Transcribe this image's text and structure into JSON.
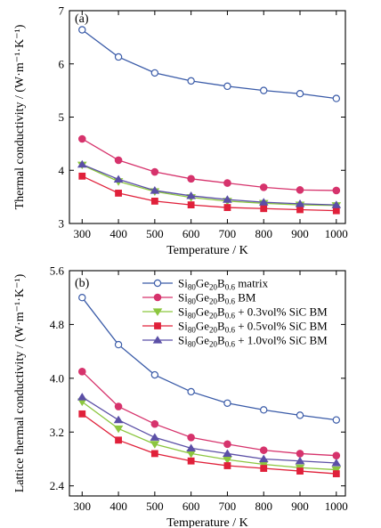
{
  "chart_data": [
    {
      "type": "line",
      "panel_label": "(a)",
      "xlabel": "Temperature / K",
      "ylabel": "Thermal conductivity / (W·m⁻¹·K⁻¹)",
      "xlim": [
        265,
        1025
      ],
      "ylim": [
        3,
        7
      ],
      "xticks": [
        300,
        400,
        500,
        600,
        700,
        800,
        900,
        1000
      ],
      "yticks": [
        3,
        4,
        5,
        6,
        7
      ],
      "ytick_decimals": 0,
      "x": [
        300,
        400,
        500,
        600,
        700,
        800,
        900,
        1000
      ],
      "series": [
        {
          "name": "Si80Ge20B0.6 matrix",
          "values": [
            6.64,
            6.13,
            5.83,
            5.68,
            5.58,
            5.5,
            5.44,
            5.35
          ]
        },
        {
          "name": "Si80Ge20B0.6 BM",
          "values": [
            4.59,
            4.19,
            3.97,
            3.84,
            3.76,
            3.68,
            3.63,
            3.62
          ]
        },
        {
          "name": "Si80Ge20B0.6 + 0.3vol% SiC BM",
          "values": [
            4.1,
            3.79,
            3.6,
            3.49,
            3.42,
            3.38,
            3.35,
            3.34
          ]
        },
        {
          "name": "Si80Ge20B0.6 + 0.5vol% SiC BM",
          "values": [
            3.89,
            3.57,
            3.42,
            3.35,
            3.3,
            3.28,
            3.26,
            3.24
          ]
        },
        {
          "name": "Si80Ge20B0.6 + 1.0vol% SiC BM",
          "values": [
            4.11,
            3.83,
            3.62,
            3.52,
            3.45,
            3.4,
            3.37,
            3.35
          ]
        }
      ]
    },
    {
      "type": "line",
      "panel_label": "(b)",
      "xlabel": "Temperature / K",
      "ylabel": "Lattice thermal conductivity / (W·m⁻¹·K⁻¹)",
      "xlim": [
        265,
        1025
      ],
      "ylim": [
        2.25,
        5.6
      ],
      "xticks": [
        300,
        400,
        500,
        600,
        700,
        800,
        900,
        1000
      ],
      "yticks": [
        2.4,
        3.2,
        4.0,
        4.8,
        5.6
      ],
      "ytick_decimals": 1,
      "legend": "top-right",
      "x": [
        300,
        400,
        500,
        600,
        700,
        800,
        900,
        1000
      ],
      "series": [
        {
          "name": "Si80Ge20B0.6 matrix",
          "values": [
            5.2,
            4.5,
            4.05,
            3.8,
            3.63,
            3.53,
            3.45,
            3.38
          ]
        },
        {
          "name": "Si80Ge20B0.6 BM",
          "values": [
            4.1,
            3.58,
            3.32,
            3.12,
            3.02,
            2.93,
            2.88,
            2.85
          ]
        },
        {
          "name": "Si80Ge20B0.6 + 0.3vol% SiC BM",
          "values": [
            3.65,
            3.25,
            3.02,
            2.88,
            2.79,
            2.72,
            2.67,
            2.64
          ]
        },
        {
          "name": "Si80Ge20B0.6 + 0.5vol% SiC BM",
          "values": [
            3.47,
            3.08,
            2.88,
            2.77,
            2.7,
            2.66,
            2.62,
            2.58
          ]
        },
        {
          "name": "Si80Ge20B0.6 + 1.0vol% SiC BM",
          "values": [
            3.72,
            3.38,
            3.12,
            2.96,
            2.88,
            2.8,
            2.77,
            2.74
          ]
        }
      ]
    }
  ],
  "legend_entries": [
    {
      "base": "Si",
      "s1": "80",
      "mid1": "Ge",
      "s2": "20",
      "mid2": "B",
      "s3": "0.6",
      "tail": " matrix"
    },
    {
      "base": "Si",
      "s1": "80",
      "mid1": "Ge",
      "s2": "20",
      "mid2": "B",
      "s3": "0.6",
      "tail": " BM"
    },
    {
      "base": "Si",
      "s1": "80",
      "mid1": "Ge",
      "s2": "20",
      "mid2": "B",
      "s3": "0.6",
      "tail": " + 0.3vol% SiC BM"
    },
    {
      "base": "Si",
      "s1": "80",
      "mid1": "Ge",
      "s2": "20",
      "mid2": "B",
      "s3": "0.6",
      "tail": " + 0.5vol% SiC BM"
    },
    {
      "base": "Si",
      "s1": "80",
      "mid1": "Ge",
      "s2": "20",
      "mid2": "B",
      "s3": "0.6",
      "tail": " + 1.0vol% SiC BM"
    }
  ],
  "series_style": [
    {
      "color": "#3a5ba8",
      "marker": "circle-open",
      "marker_name": "open-circle-marker"
    },
    {
      "color": "#d6336c",
      "marker": "circle-filled",
      "marker_name": "filled-circle-marker"
    },
    {
      "color": "#8cc63f",
      "marker": "triangle-down",
      "marker_name": "down-triangle-marker"
    },
    {
      "color": "#e0203a",
      "marker": "square",
      "marker_name": "square-marker"
    },
    {
      "color": "#5b4fa6",
      "marker": "triangle-up",
      "marker_name": "up-triangle-marker"
    }
  ]
}
